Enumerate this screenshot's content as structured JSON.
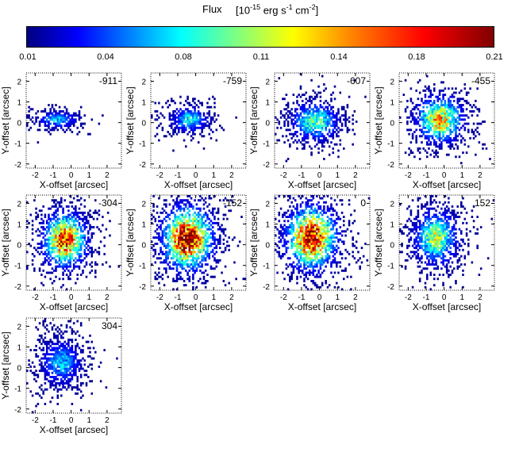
{
  "colorbar": {
    "title": "Flux",
    "units_prefix": "[10",
    "units_exp1": "-15",
    "units_mid": " erg s",
    "units_exp2": "-1",
    "units_mid2": " cm",
    "units_exp3": "-2",
    "units_suffix": "]",
    "ticks": [
      "0.01",
      "0.04",
      "0.08",
      "0.11",
      "0.14",
      "0.18",
      "0.21"
    ],
    "range": [
      0.01,
      0.21
    ]
  },
  "chart_data": {
    "type": "heatmap",
    "xlabel": "X-offset [arcsec]",
    "ylabel": "Y-offset [arcsec]",
    "xlim": [
      -2.5,
      2.8
    ],
    "ylim": [
      -2.2,
      2.4
    ],
    "xticks": [
      "-2",
      "-1",
      "0",
      "1",
      "2"
    ],
    "yticks": [
      "-2",
      "-1",
      "0",
      "1",
      "2"
    ],
    "panels": [
      {
        "label": "-911",
        "peak": 0.06,
        "cx": -0.8,
        "cy": 0.1,
        "sx": 0.55,
        "sy": 0.2
      },
      {
        "label": "-759",
        "peak": 0.07,
        "cx": -0.4,
        "cy": 0.1,
        "sx": 0.5,
        "sy": 0.3
      },
      {
        "label": "-607",
        "peak": 0.09,
        "cx": -0.3,
        "cy": 0.0,
        "sx": 0.65,
        "sy": 0.45
      },
      {
        "label": "-455",
        "peak": 0.13,
        "cx": -0.3,
        "cy": 0.1,
        "sx": 0.65,
        "sy": 0.55
      },
      {
        "label": "-304",
        "peak": 0.17,
        "cx": -0.4,
        "cy": 0.2,
        "sx": 0.6,
        "sy": 0.65
      },
      {
        "label": "-152",
        "peak": 0.2,
        "cx": -0.5,
        "cy": 0.25,
        "sx": 0.7,
        "sy": 0.75
      },
      {
        "label": "0",
        "peak": 0.19,
        "cx": -0.5,
        "cy": 0.3,
        "sx": 0.7,
        "sy": 0.75
      },
      {
        "label": "152",
        "peak": 0.1,
        "cx": -0.5,
        "cy": 0.3,
        "sx": 0.6,
        "sy": 0.65
      },
      {
        "label": "304",
        "peak": 0.06,
        "cx": -0.6,
        "cy": 0.2,
        "sx": 0.55,
        "sy": 0.55
      }
    ]
  }
}
